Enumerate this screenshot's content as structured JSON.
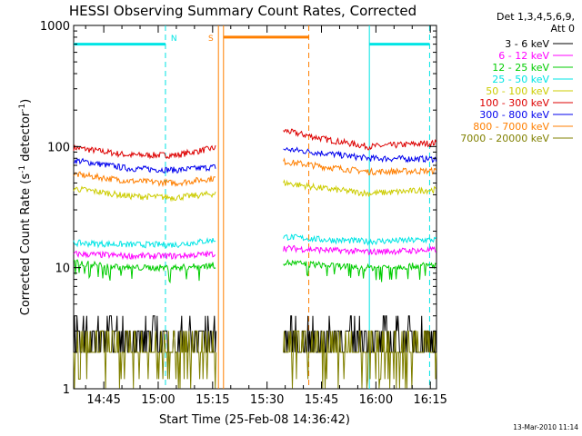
{
  "chart_data": {
    "type": "line",
    "title": "HESSI Observing Summary Count Rates, Corrected",
    "xlabel": "Start Time (25-Feb-08 14:36:42)",
    "ylabel": "Corrected Count Rate (s",
    "ylabel_sup1": "-1",
    "ylabel_mid": " detector",
    "ylabel_sup2": "-1",
    "ylabel_end": ")",
    "y_scale": "log",
    "ylim": [
      1,
      1000
    ],
    "xlim_min": [
      876.7,
      976.7
    ],
    "x_tick_min": [
      885,
      900,
      915,
      930,
      945,
      960,
      975
    ],
    "x_tick_labels": [
      "14:45",
      "15:00",
      "15:15",
      "15:30",
      "15:45",
      "16:00",
      "16:15"
    ],
    "y_tick_values": [
      1,
      10,
      100,
      1000
    ],
    "y_tick_labels": [
      "1",
      "10",
      "100",
      "1000"
    ],
    "legend": {
      "placement": "right",
      "header": [
        "Det 1,3,4,5,6,9,",
        "Att 0"
      ],
      "entries": [
        {
          "label": "3 - 6 keV",
          "color": "#000000"
        },
        {
          "label": "6 - 12 keV",
          "color": "#ff00ff"
        },
        {
          "label": "12 - 25 keV",
          "color": "#00cc00"
        },
        {
          "label": "25 - 50 keV",
          "color": "#00e5e5"
        },
        {
          "label": "50 - 100 keV",
          "color": "#cccc00"
        },
        {
          "label": "100 - 300 keV",
          "color": "#dd0000"
        },
        {
          "label": "300 - 800 keV",
          "color": "#0000ee"
        },
        {
          "label": "800 - 7000 keV",
          "color": "#ff7f00"
        },
        {
          "label": "7000 - 20000 keV",
          "color": "#808000"
        }
      ]
    },
    "segments_min": [
      [
        876.7,
        916.0
      ],
      [
        934.5,
        976.7
      ]
    ],
    "series": [
      {
        "name": "100 - 300 keV",
        "color": "#dd0000",
        "seg1": [
          [
            877,
            98
          ],
          [
            892,
            85
          ],
          [
            905,
            85
          ],
          [
            916,
            98
          ]
        ],
        "seg2": [
          [
            935,
            135
          ],
          [
            946,
            115
          ],
          [
            958,
            100
          ],
          [
            976,
            107
          ]
        ]
      },
      {
        "name": "300 - 800 keV",
        "color": "#0000ee",
        "seg1": [
          [
            877,
            77
          ],
          [
            892,
            66
          ],
          [
            905,
            64
          ],
          [
            916,
            68
          ]
        ],
        "seg2": [
          [
            935,
            95
          ],
          [
            946,
            88
          ],
          [
            958,
            80
          ],
          [
            976,
            79
          ]
        ]
      },
      {
        "name": "800 - 7000 keV",
        "color": "#ff7f00",
        "seg1": [
          [
            877,
            59
          ],
          [
            892,
            52
          ],
          [
            905,
            50
          ],
          [
            916,
            55
          ]
        ],
        "seg2": [
          [
            935,
            75
          ],
          [
            946,
            68
          ],
          [
            958,
            62
          ],
          [
            976,
            63
          ]
        ]
      },
      {
        "name": "50 - 100 keV",
        "color": "#cccc00",
        "seg1": [
          [
            877,
            45
          ],
          [
            892,
            39
          ],
          [
            905,
            38
          ],
          [
            916,
            41
          ]
        ],
        "seg2": [
          [
            935,
            50
          ],
          [
            946,
            45
          ],
          [
            958,
            41
          ],
          [
            976,
            44
          ]
        ]
      },
      {
        "name": "25 - 50 keV",
        "color": "#00e5e5",
        "seg1": [
          [
            877,
            16
          ],
          [
            892,
            15.5
          ],
          [
            905,
            15.5
          ],
          [
            916,
            17
          ]
        ],
        "seg2": [
          [
            935,
            18
          ],
          [
            946,
            17
          ],
          [
            958,
            16.5
          ],
          [
            976,
            17
          ]
        ]
      },
      {
        "name": "6 - 12 keV",
        "color": "#ff00ff",
        "seg1": [
          [
            877,
            13
          ],
          [
            892,
            12.5
          ],
          [
            905,
            12.5
          ],
          [
            916,
            13
          ]
        ],
        "seg2": [
          [
            935,
            14.5
          ],
          [
            946,
            14
          ],
          [
            958,
            13.5
          ],
          [
            976,
            14
          ]
        ]
      },
      {
        "name": "12 - 25 keV",
        "color": "#00cc00",
        "seg1": [
          [
            877,
            11
          ],
          [
            892,
            10
          ],
          [
            905,
            10
          ],
          [
            916,
            10.5
          ]
        ],
        "seg2": [
          [
            935,
            11
          ],
          [
            946,
            10.5
          ],
          [
            958,
            10
          ],
          [
            976,
            10.5
          ]
        ]
      },
      {
        "name": "3 - 6 keV",
        "color": "#000000",
        "seg1": [
          [
            877,
            3
          ],
          [
            892,
            3
          ],
          [
            905,
            3
          ],
          [
            916,
            3
          ]
        ],
        "seg2": [
          [
            935,
            3
          ],
          [
            946,
            3
          ],
          [
            958,
            3
          ],
          [
            976,
            3
          ]
        ]
      },
      {
        "name": "7000 - 20000 keV",
        "color": "#808000",
        "seg1": [
          [
            877,
            2.5
          ],
          [
            892,
            2.5
          ],
          [
            905,
            2.5
          ],
          [
            916,
            2.5
          ]
        ],
        "seg2": [
          [
            935,
            2.5
          ],
          [
            946,
            2.5
          ],
          [
            958,
            2.5
          ],
          [
            976,
            2.5
          ]
        ]
      }
    ],
    "annotations": [
      {
        "label": "N",
        "color": "#00e5e5",
        "bar_start_min": 876.7,
        "bar_end_min": 902.0,
        "bar_y": 700,
        "dash_at_min": 902.0,
        "label_at_min": 903.5
      },
      {
        "label": "S",
        "color": "#ff7f00",
        "solid_lines_min": [
          916.6,
          918.0
        ],
        "bar_start_min": 918.0,
        "bar_end_min": 941.5,
        "bar_y": 800,
        "dash_at_min": 941.5,
        "label_at_min": 913.8
      },
      {
        "label": "",
        "color": "#00e5e5",
        "solid_line_min": 958.2,
        "bar_start_min": 958.2,
        "bar_end_min": 974.8,
        "bar_y": 700,
        "dash_at_min": 974.8
      }
    ],
    "timestamp": "13-Mar-2010 11:14"
  }
}
